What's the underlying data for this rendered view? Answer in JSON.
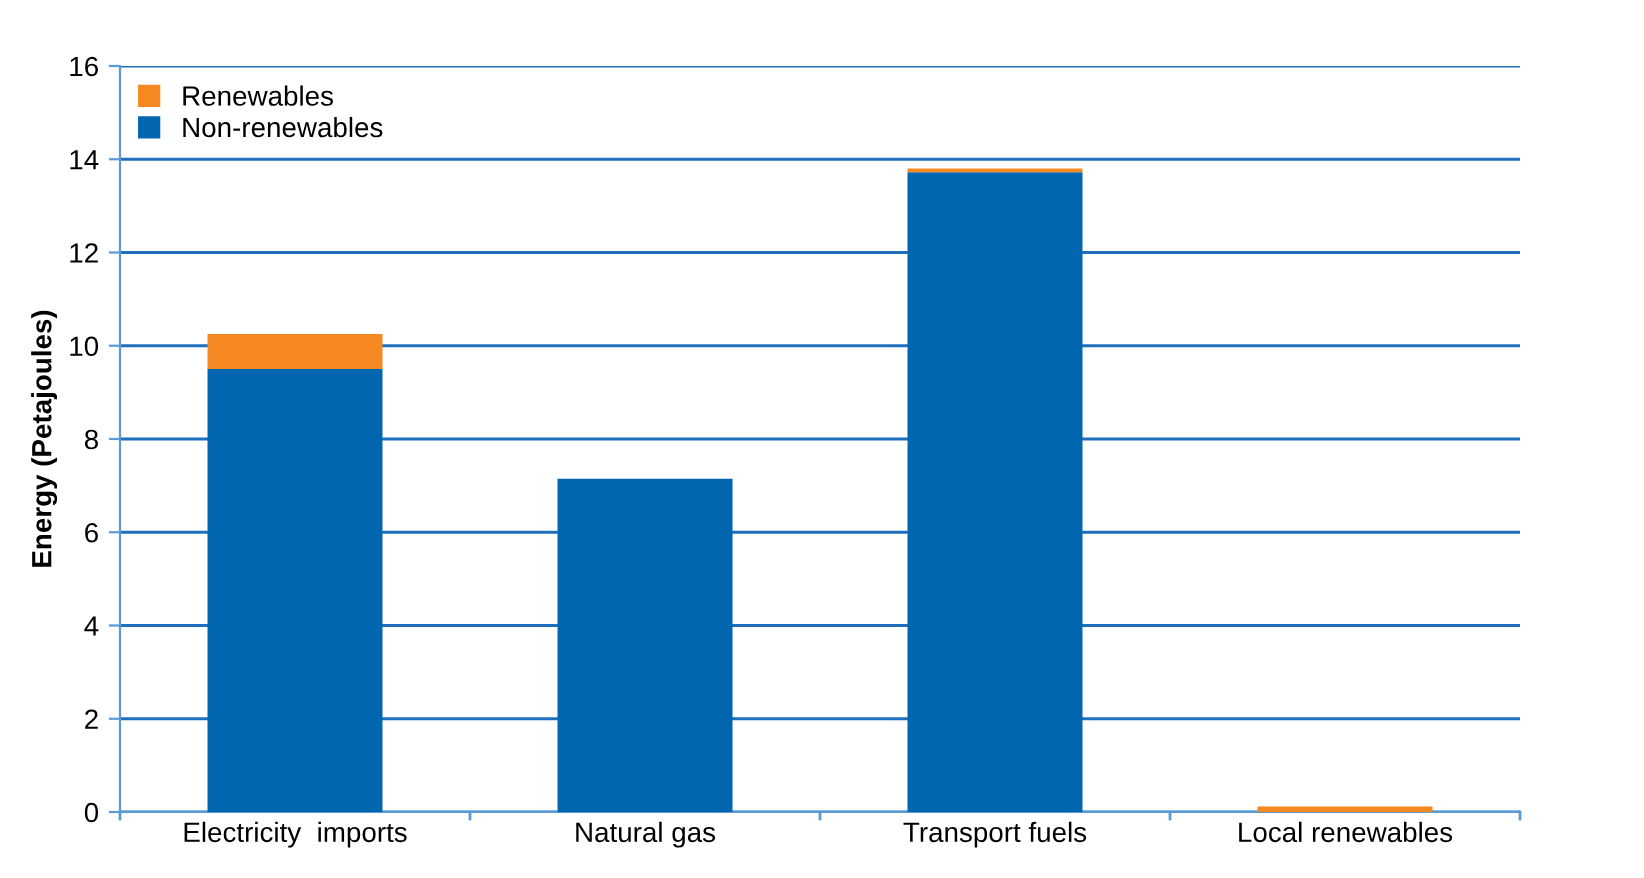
{
  "chart_data": {
    "type": "bar",
    "ylabel": "Energy (Petajoules)",
    "categories": [
      "Electricity  imports",
      "Natural gas",
      "Transport fuels",
      "Local renewables"
    ],
    "stacked": true,
    "series": [
      {
        "name": "Non-renewables",
        "color": "#0066b0",
        "values": [
          9.5,
          7.15,
          13.72,
          0
        ]
      },
      {
        "name": "Renewables",
        "color": "#f58820",
        "values": [
          0.75,
          0,
          0.08,
          0.12
        ]
      }
    ],
    "ylim": [
      0,
      16
    ],
    "yticks": [
      0,
      2,
      4,
      6,
      8,
      10,
      12,
      14,
      16
    ],
    "grid": "y",
    "legend": "top left"
  }
}
